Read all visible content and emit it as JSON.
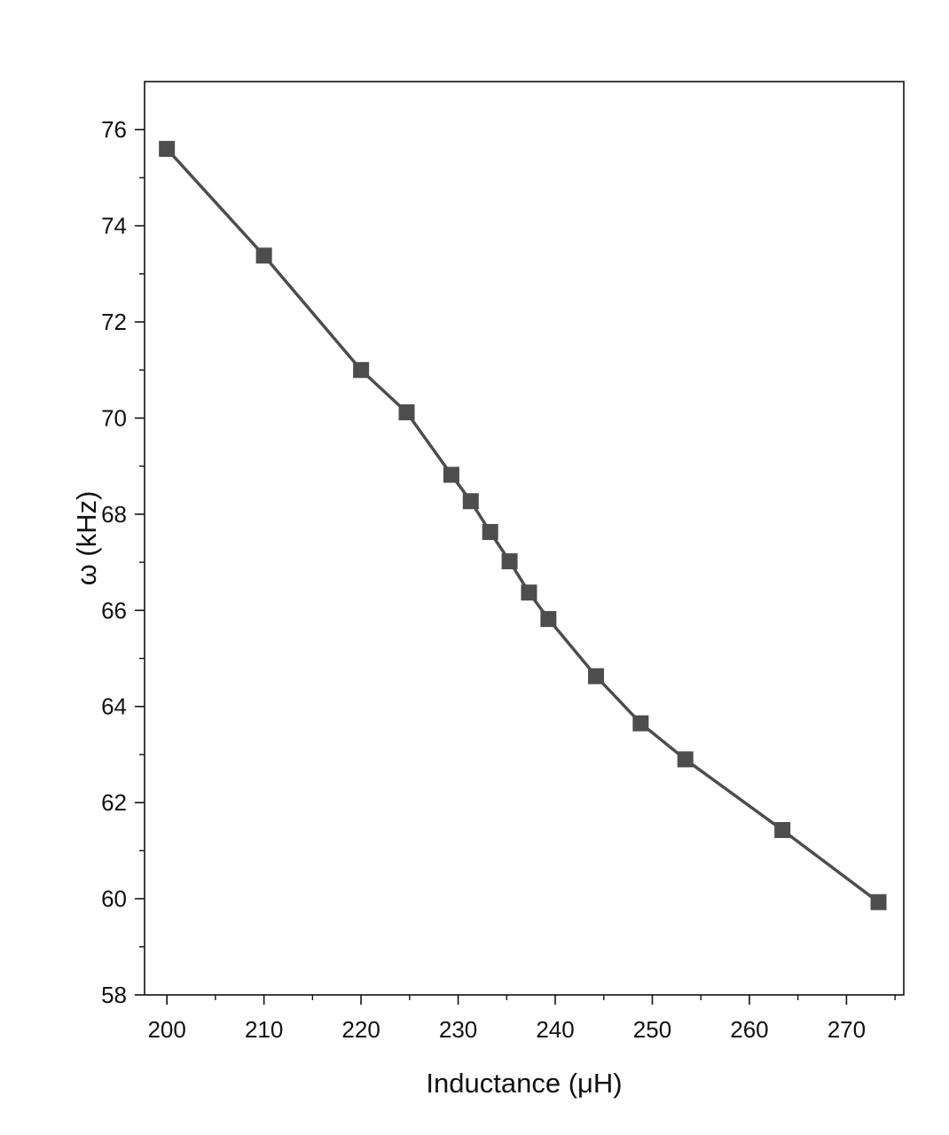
{
  "chart_data": {
    "type": "line",
    "xlabel": "Inductance (μH)",
    "ylabel": "ω (kHz)",
    "xlim": [
      197.7,
      275.9
    ],
    "ylim": [
      58,
      77
    ],
    "x_ticks": [
      200,
      210,
      220,
      230,
      240,
      250,
      260,
      270
    ],
    "y_ticks": [
      58,
      60,
      62,
      64,
      66,
      68,
      70,
      72,
      74,
      76
    ],
    "grid": false,
    "marker": "square",
    "series": [
      {
        "color": "#4d4d4d",
        "x": [
          200,
          210,
          220,
          224.7,
          229.3,
          231.3,
          233.3,
          235.3,
          237.3,
          239.3,
          244.2,
          248.8,
          253.4,
          263.4,
          273.3
        ],
        "y": [
          75.6,
          73.38,
          71.0,
          70.12,
          68.82,
          68.27,
          67.63,
          67.02,
          66.37,
          65.82,
          64.63,
          63.65,
          62.9,
          61.43,
          59.93
        ]
      }
    ]
  }
}
